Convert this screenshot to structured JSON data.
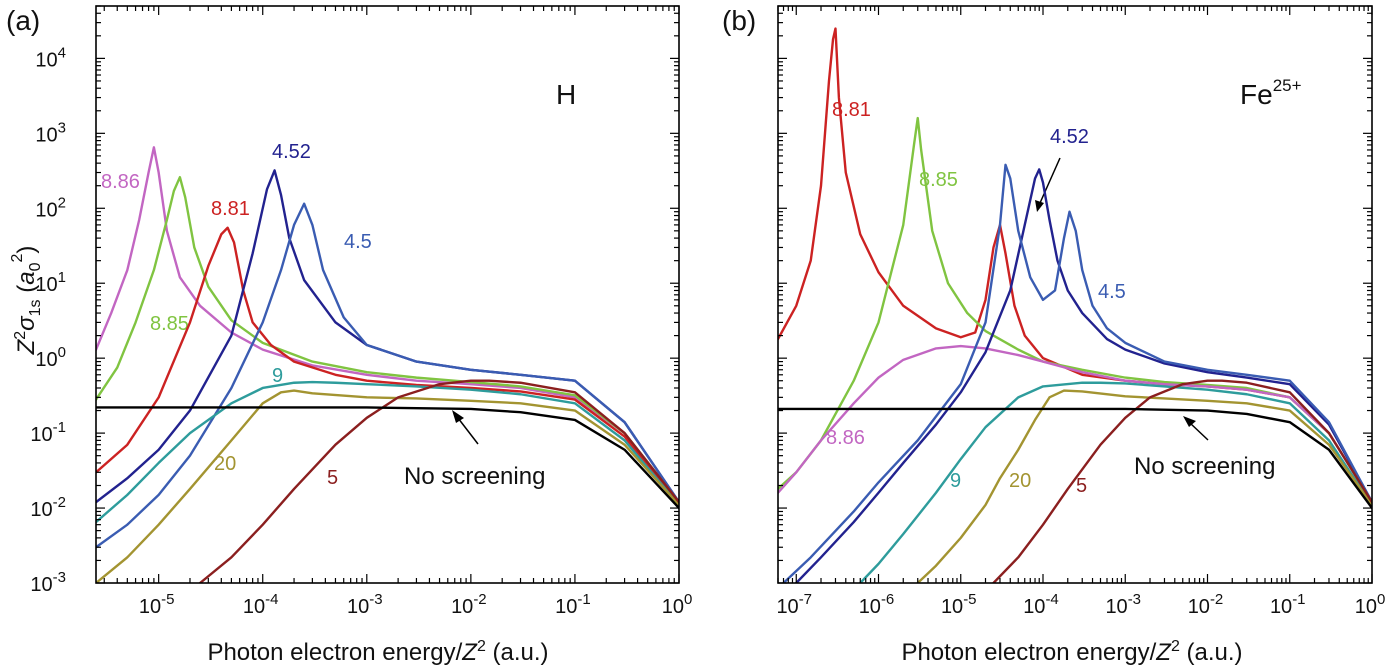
{
  "chart_data": [
    {
      "panel_label": "(a)",
      "element_label": "H",
      "type": "line",
      "xscale": "log",
      "yscale": "log",
      "xlim": [
        2.5e-06,
        1.0
      ],
      "ylim": [
        0.001,
        50000.0
      ],
      "x_ticks": [
        {
          "v": 1e-05,
          "m": "10",
          "e": "-5"
        },
        {
          "v": 0.0001,
          "m": "10",
          "e": "-4"
        },
        {
          "v": 0.001,
          "m": "10",
          "e": "-3"
        },
        {
          "v": 0.01,
          "m": "10",
          "e": "-2"
        },
        {
          "v": 0.1,
          "m": "10",
          "e": "-1"
        },
        {
          "v": 1.0,
          "m": "10",
          "e": "0"
        }
      ],
      "y_ticks": [
        {
          "v": 0.001,
          "m": "10",
          "e": "-3"
        },
        {
          "v": 0.01,
          "m": "10",
          "e": "-2"
        },
        {
          "v": 0.1,
          "m": "10",
          "e": "-1"
        },
        {
          "v": 1.0,
          "m": "10",
          "e": "0"
        },
        {
          "v": 10,
          "m": "10",
          "e": "1"
        },
        {
          "v": 100,
          "m": "10",
          "e": "2"
        },
        {
          "v": 1000,
          "m": "10",
          "e": "3"
        },
        {
          "v": 10000,
          "m": "10",
          "e": "4"
        }
      ],
      "xlabel": {
        "prefix": "Photon electron energy/",
        "var": "Z",
        "sup": "2",
        "suffix": " (a.u.)"
      },
      "ylabel": {
        "Z": "Z",
        "Zsup": "2",
        "sigma": "σ",
        "sub": "1s",
        "open": " (",
        "a": "a",
        "asub": "0",
        "asup": "2",
        "close": ")"
      },
      "series": [
        {
          "label": "8.86",
          "color": "#c266c2",
          "x": [
            2.5e-06,
            3.5e-06,
            5e-06,
            6.5e-06,
            8e-06,
            9e-06,
            1e-05,
            1.2e-05,
            1.6e-05,
            2.5e-05,
            5e-05,
            0.0001,
            0.0003,
            0.001,
            0.003,
            0.01,
            0.03,
            0.1,
            0.3,
            1.0
          ],
          "y": [
            1.3,
            4,
            15,
            70,
            300,
            650,
            300,
            50,
            12,
            5,
            2.2,
            1.3,
            0.8,
            0.6,
            0.5,
            0.45,
            0.4,
            0.3,
            0.1,
            0.012
          ]
        },
        {
          "label": "8.85",
          "color": "#80c441",
          "x": [
            2.5e-06,
            4e-06,
            6e-06,
            9e-06,
            1.2e-05,
            1.4e-05,
            1.6e-05,
            1.8e-05,
            2.2e-05,
            3e-05,
            5e-05,
            0.0001,
            0.0003,
            0.001,
            0.003,
            0.01,
            0.03,
            0.1,
            0.3,
            1.0
          ],
          "y": [
            0.28,
            0.75,
            3,
            15,
            70,
            170,
            260,
            140,
            30,
            9,
            3.2,
            1.6,
            0.9,
            0.65,
            0.55,
            0.48,
            0.42,
            0.32,
            0.1,
            0.012
          ]
        },
        {
          "label": "8.81",
          "color": "#cc2222",
          "x": [
            2.5e-06,
            5e-06,
            1e-05,
            2e-05,
            3e-05,
            4e-05,
            4.6e-05,
            5.3e-05,
            6.5e-05,
            8e-05,
            0.00012,
            0.0002,
            0.0005,
            0.001,
            0.003,
            0.01,
            0.03,
            0.1,
            0.3,
            1.0
          ],
          "y": [
            0.03,
            0.07,
            0.3,
            3,
            17,
            45,
            55,
            35,
            8,
            3,
            1.5,
            0.9,
            0.6,
            0.5,
            0.44,
            0.4,
            0.36,
            0.28,
            0.09,
            0.011
          ]
        },
        {
          "label": "4.52",
          "color": "#22228f",
          "x": [
            2.5e-06,
            5e-06,
            1e-05,
            2e-05,
            5e-05,
            8e-05,
            0.00011,
            0.00013,
            0.00015,
            0.00018,
            0.00025,
            0.0005,
            0.001,
            0.003,
            0.01,
            0.03,
            0.1,
            0.3,
            1.0
          ],
          "y": [
            0.012,
            0.025,
            0.06,
            0.2,
            2,
            25,
            180,
            320,
            150,
            40,
            11,
            3,
            1.5,
            0.9,
            0.7,
            0.6,
            0.5,
            0.14,
            0.012
          ]
        },
        {
          "label": "4.5",
          "color": "#3a5cb2",
          "x": [
            2.5e-06,
            5e-06,
            1e-05,
            2e-05,
            5e-05,
            0.0001,
            0.00015,
            0.0002,
            0.00025,
            0.0003,
            0.00038,
            0.0006,
            0.001,
            0.003,
            0.01,
            0.03,
            0.1,
            0.3,
            1.0
          ],
          "y": [
            0.003,
            0.006,
            0.015,
            0.05,
            0.4,
            3,
            15,
            60,
            115,
            60,
            15,
            3.5,
            1.5,
            0.9,
            0.7,
            0.6,
            0.5,
            0.14,
            0.012
          ]
        },
        {
          "label": "9",
          "color": "#2e9c9c",
          "x": [
            2.5e-06,
            5e-06,
            1e-05,
            2e-05,
            5e-05,
            0.0001,
            0.0002,
            0.0003,
            0.0005,
            0.001,
            0.003,
            0.01,
            0.03,
            0.1,
            0.3,
            1.0
          ],
          "y": [
            0.0065,
            0.015,
            0.04,
            0.1,
            0.25,
            0.4,
            0.47,
            0.48,
            0.47,
            0.45,
            0.42,
            0.38,
            0.33,
            0.25,
            0.08,
            0.011
          ]
        },
        {
          "label": "20",
          "color": "#a39431",
          "x": [
            2.5e-06,
            5e-06,
            1e-05,
            2e-05,
            5e-05,
            0.0001,
            0.00015,
            0.0002,
            0.0003,
            0.001,
            0.003,
            0.01,
            0.03,
            0.1,
            0.3,
            1.0
          ],
          "y": [
            0.001,
            0.0022,
            0.006,
            0.018,
            0.08,
            0.25,
            0.35,
            0.37,
            0.34,
            0.3,
            0.29,
            0.27,
            0.25,
            0.2,
            0.07,
            0.011
          ]
        },
        {
          "label": "5",
          "color": "#8b1f1f",
          "x": [
            2.5e-05,
            5e-05,
            0.0001,
            0.0002,
            0.0005,
            0.001,
            0.002,
            0.005,
            0.01,
            0.015,
            0.03,
            0.1,
            0.3,
            1.0
          ],
          "y": [
            0.001,
            0.0022,
            0.006,
            0.018,
            0.07,
            0.16,
            0.3,
            0.45,
            0.5,
            0.5,
            0.47,
            0.35,
            0.1,
            0.012
          ]
        },
        {
          "label": "No screening",
          "color": "#000000",
          "x": [
            2.5e-06,
            1e-05,
            0.0001,
            0.001,
            0.01,
            0.03,
            0.1,
            0.3,
            1.0
          ],
          "y": [
            0.22,
            0.22,
            0.22,
            0.22,
            0.21,
            0.19,
            0.15,
            0.06,
            0.01
          ]
        }
      ]
    },
    {
      "panel_label": "(b)",
      "element_label": "Fe",
      "element_sup": "25+",
      "type": "line",
      "xscale": "log",
      "yscale": "log",
      "xlim": [
        6e-08,
        1.0
      ],
      "ylim": [
        0.001,
        50000.0
      ],
      "x_ticks": [
        {
          "v": 1e-07,
          "m": "10",
          "e": "-7"
        },
        {
          "v": 1e-06,
          "m": "10",
          "e": "-6"
        },
        {
          "v": 1e-05,
          "m": "10",
          "e": "-5"
        },
        {
          "v": 0.0001,
          "m": "10",
          "e": "-4"
        },
        {
          "v": 0.001,
          "m": "10",
          "e": "-3"
        },
        {
          "v": 0.01,
          "m": "10",
          "e": "-2"
        },
        {
          "v": 0.1,
          "m": "10",
          "e": "-1"
        },
        {
          "v": 1.0,
          "m": "10",
          "e": "0"
        }
      ],
      "y_ticks": [
        {
          "v": 0.001
        },
        {
          "v": 0.01
        },
        {
          "v": 0.1
        },
        {
          "v": 1.0
        },
        {
          "v": 10
        },
        {
          "v": 100
        },
        {
          "v": 1000
        },
        {
          "v": 10000
        }
      ],
      "xlabel": {
        "prefix": "Photon electron energy/",
        "var": "Z",
        "sup": "2",
        "suffix": " (a.u.)"
      },
      "series": [
        {
          "label": "8.81",
          "color": "#cc2222",
          "x": [
            6e-08,
            1e-07,
            1.5e-07,
            2e-07,
            2.5e-07,
            2.8e-07,
            3e-07,
            3.3e-07,
            4e-07,
            6e-07,
            1e-06,
            2e-06,
            5e-06,
            1e-05,
            1.5e-05,
            2e-05,
            2.5e-05,
            3e-05,
            3.5e-05,
            4.5e-05,
            6e-05,
            0.0001,
            0.0003,
            0.001,
            0.003,
            0.01,
            0.03,
            0.1,
            0.3,
            1.0
          ],
          "y": [
            1.8,
            5,
            20,
            200,
            5000,
            18000,
            25000,
            3000,
            300,
            45,
            14,
            5,
            2.5,
            1.9,
            2.2,
            6,
            30,
            60,
            25,
            5,
            2,
            1,
            0.6,
            0.5,
            0.45,
            0.42,
            0.38,
            0.3,
            0.1,
            0.012
          ]
        },
        {
          "label": "8.85",
          "color": "#80c441",
          "x": [
            6e-08,
            1e-07,
            2e-07,
            5e-07,
            1e-06,
            2e-06,
            2.7e-06,
            3e-06,
            3.3e-06,
            4.5e-06,
            7e-06,
            1.2e-05,
            2e-05,
            5e-05,
            0.0001,
            0.0003,
            0.001,
            0.003,
            0.01,
            0.03,
            0.1,
            0.3,
            1.0
          ],
          "y": [
            0.018,
            0.03,
            0.08,
            0.5,
            3,
            60,
            700,
            1600,
            600,
            50,
            10,
            4,
            2.3,
            1.3,
            0.9,
            0.7,
            0.55,
            0.48,
            0.44,
            0.4,
            0.3,
            0.1,
            0.012
          ]
        },
        {
          "label": "8.86",
          "color": "#c266c2",
          "x": [
            6e-08,
            1e-07,
            2e-07,
            5e-07,
            1e-06,
            2e-06,
            5e-06,
            1e-05,
            2e-05,
            5e-05,
            0.0001,
            0.0003,
            0.001,
            0.003,
            0.01,
            0.03,
            0.1,
            0.3,
            1.0
          ],
          "y": [
            0.016,
            0.03,
            0.08,
            0.25,
            0.55,
            0.95,
            1.35,
            1.45,
            1.35,
            1.1,
            0.9,
            0.65,
            0.5,
            0.45,
            0.42,
            0.38,
            0.3,
            0.1,
            0.012
          ]
        },
        {
          "label": "4.52",
          "color": "#22228f",
          "x": [
            1e-07,
            2e-07,
            5e-07,
            1e-06,
            2e-06,
            5e-06,
            1e-05,
            2e-05,
            4e-05,
            6e-05,
            8e-05,
            9e-05,
            0.0001,
            0.00012,
            0.00015,
            0.0002,
            0.0003,
            0.0006,
            0.001,
            0.003,
            0.01,
            0.03,
            0.1,
            0.3,
            1.0
          ],
          "y": [
            0.001,
            0.0022,
            0.0065,
            0.016,
            0.04,
            0.13,
            0.35,
            1.2,
            8,
            60,
            250,
            330,
            220,
            70,
            20,
            8,
            4,
            1.8,
            1.3,
            0.85,
            0.65,
            0.55,
            0.45,
            0.13,
            0.012
          ]
        },
        {
          "label": "4.5",
          "color": "#3a5cb2",
          "x": [
            7e-08,
            1.5e-07,
            5e-07,
            1e-06,
            3e-06,
            1e-05,
            2e-05,
            3e-05,
            3.5e-05,
            4e-05,
            5e-05,
            7e-05,
            0.0001,
            0.00014,
            0.00018,
            0.00021,
            0.00025,
            0.0003,
            0.0004,
            0.0006,
            0.001,
            0.003,
            0.01,
            0.03,
            0.1,
            0.3,
            1.0
          ],
          "y": [
            0.001,
            0.0022,
            0.009,
            0.022,
            0.08,
            0.45,
            3,
            60,
            380,
            250,
            50,
            12,
            6,
            8,
            40,
            90,
            50,
            15,
            5,
            2.5,
            1.6,
            0.9,
            0.7,
            0.6,
            0.5,
            0.14,
            0.012
          ]
        },
        {
          "label": "9",
          "color": "#2e9c9c",
          "x": [
            6e-07,
            1e-06,
            2e-06,
            5e-06,
            1e-05,
            2e-05,
            5e-05,
            0.0001,
            0.0003,
            0.0005,
            0.001,
            0.003,
            0.01,
            0.03,
            0.1,
            0.3,
            1.0
          ],
          "y": [
            0.001,
            0.0018,
            0.0045,
            0.016,
            0.045,
            0.12,
            0.3,
            0.42,
            0.47,
            0.47,
            0.46,
            0.42,
            0.38,
            0.33,
            0.25,
            0.08,
            0.011
          ]
        },
        {
          "label": "20",
          "color": "#a39431",
          "x": [
            3e-06,
            5e-06,
            1e-05,
            2e-05,
            3e-05,
            5e-05,
            8e-05,
            0.00012,
            0.00018,
            0.0003,
            0.001,
            0.003,
            0.01,
            0.03,
            0.1,
            0.3,
            1.0
          ],
          "y": [
            0.001,
            0.0017,
            0.004,
            0.011,
            0.025,
            0.06,
            0.15,
            0.3,
            0.37,
            0.36,
            0.31,
            0.29,
            0.27,
            0.25,
            0.2,
            0.07,
            0.011
          ]
        },
        {
          "label": "5",
          "color": "#8b1f1f",
          "x": [
            2.5e-05,
            5e-05,
            0.0001,
            0.0002,
            0.0005,
            0.001,
            0.002,
            0.005,
            0.01,
            0.015,
            0.03,
            0.1,
            0.3,
            1.0
          ],
          "y": [
            0.001,
            0.0022,
            0.006,
            0.018,
            0.07,
            0.16,
            0.3,
            0.45,
            0.5,
            0.5,
            0.47,
            0.35,
            0.1,
            0.012
          ]
        },
        {
          "label": "No screening",
          "color": "#000000",
          "x": [
            6e-08,
            1e-06,
            0.0001,
            0.001,
            0.01,
            0.03,
            0.1,
            0.3,
            1.0
          ],
          "y": [
            0.21,
            0.21,
            0.21,
            0.21,
            0.2,
            0.18,
            0.14,
            0.06,
            0.01
          ]
        }
      ]
    }
  ]
}
